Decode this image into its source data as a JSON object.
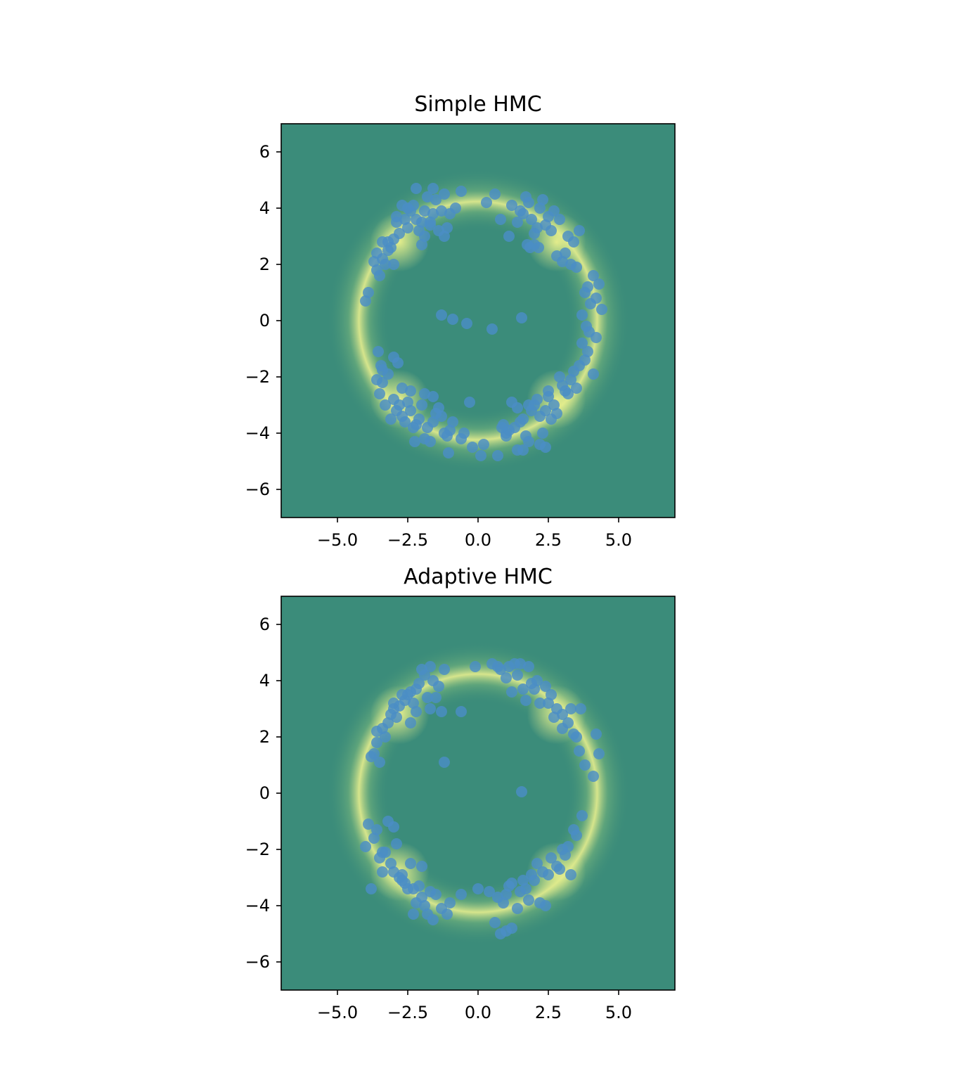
{
  "chart_data": [
    {
      "type": "scatter",
      "title": "Simple HMC",
      "xlabel": "",
      "ylabel": "",
      "xlim": [
        -7,
        7
      ],
      "ylim": [
        -7,
        7
      ],
      "xticks": [
        -5.0,
        -2.5,
        0.0,
        2.5,
        5.0
      ],
      "xtick_labels": [
        "−5.0",
        "−2.5",
        "0.0",
        "2.5",
        "5.0"
      ],
      "yticks": [
        -6,
        -4,
        -2,
        0,
        2,
        4,
        6
      ],
      "ytick_labels": [
        "−6",
        "−4",
        "−2",
        "0",
        "2",
        "4",
        "6"
      ],
      "grid": false,
      "background": "density heatmap of a four-mode ring (radius about 4.25)",
      "colors": {
        "background": "#3b8c7a",
        "glow": "#f2f28c",
        "points": "#4b8ec6"
      },
      "series": [
        {
          "x": [
            -2.1,
            -1.8,
            -1.5,
            -2.4,
            -1.2,
            -2.0,
            -1.6,
            -2.7,
            -1.0,
            -2.2,
            -1.9,
            -1.4,
            -2.5,
            -0.9,
            -1.7,
            -2.3,
            -1.1,
            -2.8,
            -0.6,
            -1.3,
            -2.6,
            -1.9,
            -0.3,
            -3.0,
            -2.4,
            -1.6,
            -3.3,
            -2.9,
            -3.5,
            -3.1,
            -3.4,
            -2.7,
            -3.6,
            -3.2,
            -3.0,
            -3.45,
            -2.85,
            -3.55,
            -0.5,
            0.2,
            -3.4,
            -2.25,
            -1.05,
            1.6,
            1.9,
            2.2,
            1.4,
            2.5,
            1.8,
            2.1,
            2.7,
            1.2,
            2.4,
            1.7,
            2.0,
            2.9,
            1.5,
            2.3,
            1.1,
            2.6,
            1.85,
            2.15,
            3.2,
            2.8,
            3.4,
            3.0,
            3.6,
            3.1,
            3.5,
            3.9,
            4.1,
            3.8,
            4.3,
            4.0,
            3.7,
            4.2,
            4.4,
            3.85,
            3.95,
            4.2,
            0.8,
            0.3,
            3.3,
            2.0,
            1.75,
            0.6,
            -2.2,
            -1.9,
            -2.5,
            -1.6,
            -2.8,
            -2.0,
            -1.3,
            -2.3,
            -1.7,
            -3.0,
            -2.6,
            -1.5,
            -2.1,
            -1.0,
            -2.4,
            -1.8,
            -2.9,
            -1.2,
            -3.2,
            -2.0,
            -1.4,
            -2.7,
            -0.8,
            -1.6,
            -2.2,
            -3.1,
            -1.9,
            -3.4,
            -3.6,
            -3.3,
            -3.5,
            -3.7,
            -3.9,
            -4.0,
            -3.4,
            -3.2,
            -3.6,
            -1.1,
            -0.6,
            -2.5,
            -1.2,
            -1.7,
            -2.9,
            -3.0,
            1.6,
            1.9,
            1.3,
            2.2,
            1.5,
            2.0,
            1.1,
            2.4,
            1.7,
            2.6,
            1.4,
            2.1,
            0.9,
            2.3,
            1.8,
            2.8,
            1.2,
            2.5,
            1.0,
            2.7,
            3.0,
            3.2,
            2.9,
            3.4,
            3.1,
            3.6,
            3.3,
            3.8,
            3.5,
            2.4,
            1.4,
            0.7,
            0.1,
            -0.2,
            3.9,
            3.7,
            4.1,
            2.5,
            1.8,
            2.2,
            1.0,
            0.85,
            1.6,
            1.55,
            -0.9,
            -0.4,
            -1.3,
            0.5
          ],
          "y": [
            -3.5,
            -3.8,
            -3.3,
            -3.2,
            -4.0,
            -3.0,
            -3.6,
            -3.4,
            -3.9,
            -3.7,
            -4.2,
            -3.1,
            -2.9,
            -3.6,
            -4.3,
            -3.8,
            -4.1,
            -3.0,
            -4.2,
            -3.4,
            -3.6,
            -2.6,
            -2.9,
            -2.8,
            -2.5,
            -2.7,
            -3.0,
            -3.2,
            -2.6,
            -3.5,
            -2.2,
            -2.4,
            -2.1,
            -1.9,
            -1.3,
            -1.6,
            -1.5,
            -1.1,
            -4.0,
            -4.4,
            -1.75,
            -4.3,
            -4.7,
            3.8,
            3.6,
            4.0,
            3.5,
            3.7,
            4.2,
            3.3,
            3.9,
            4.1,
            3.4,
            4.4,
            3.1,
            3.6,
            3.9,
            4.3,
            3.0,
            3.2,
            2.6,
            2.6,
            3.0,
            2.3,
            2.8,
            2.1,
            3.2,
            2.4,
            1.9,
            1.2,
            1.6,
            1.0,
            1.3,
            0.6,
            0.2,
            0.8,
            0.4,
            -0.2,
            -0.4,
            -0.6,
            3.6,
            4.2,
            2.0,
            2.7,
            2.7,
            4.5,
            3.6,
            3.9,
            3.3,
            3.8,
            3.1,
            3.5,
            3.9,
            4.1,
            3.4,
            2.9,
            3.6,
            4.3,
            3.2,
            3.8,
            3.9,
            4.4,
            3.7,
            4.5,
            2.8,
            2.7,
            3.2,
            4.1,
            4.0,
            4.7,
            4.7,
            2.6,
            3.0,
            2.2,
            2.4,
            2.0,
            1.6,
            2.1,
            1.0,
            0.7,
            2.8,
            2.5,
            1.8,
            3.3,
            4.6,
            4.0,
            3.0,
            3.5,
            3.5,
            2.0,
            -3.5,
            -3.2,
            -3.8,
            -3.4,
            -3.6,
            -3.0,
            -3.9,
            -3.2,
            -4.1,
            -3.5,
            -3.1,
            -2.8,
            -3.7,
            -4.0,
            -4.3,
            -3.3,
            -2.9,
            -2.7,
            -4.1,
            -3.0,
            -2.3,
            -2.6,
            -2.0,
            -1.8,
            -2.5,
            -1.6,
            -2.1,
            -1.4,
            -2.4,
            -4.5,
            -4.6,
            -4.8,
            -4.8,
            -4.5,
            -1.1,
            -0.8,
            -1.9,
            -2.5,
            -3.0,
            -4.4,
            -4.0,
            -3.8,
            -4.6,
            0.1,
            0.05,
            -0.1,
            0.2,
            -0.3
          ]
        }
      ]
    },
    {
      "type": "scatter",
      "title": "Adaptive HMC",
      "xlabel": "",
      "ylabel": "",
      "xlim": [
        -7,
        7
      ],
      "ylim": [
        -7,
        7
      ],
      "xticks": [
        -5.0,
        -2.5,
        0.0,
        2.5,
        5.0
      ],
      "xtick_labels": [
        "−5.0",
        "−2.5",
        "0.0",
        "2.5",
        "5.0"
      ],
      "yticks": [
        -6,
        -4,
        -2,
        0,
        2,
        4,
        6
      ],
      "ytick_labels": [
        "−6",
        "−4",
        "−2",
        "0",
        "2",
        "4",
        "6"
      ],
      "grid": false,
      "background": "density heatmap of a four-mode ring (radius about 4.25)",
      "colors": {
        "background": "#3b8c7a",
        "glow": "#f2f28c",
        "points": "#4b8ec6"
      },
      "series": [
        {
          "x": [
            -2.4,
            -2.1,
            -1.8,
            -2.6,
            -1.6,
            -2.2,
            -2.8,
            -1.9,
            -2.5,
            -1.4,
            -2.0,
            -2.3,
            -1.7,
            -3.0,
            -2.7,
            -1.5,
            -2.2,
            -2.9,
            -1.3,
            -3.2,
            -3.0,
            -3.4,
            -3.1,
            -3.6,
            -3.3,
            -3.7,
            -3.5,
            -3.8,
            -3.6,
            -0.6,
            -0.1,
            -1.7,
            -2.4,
            -1.2,
            1.6,
            1.4,
            1.9,
            1.2,
            2.1,
            1.7,
            2.4,
            1.0,
            2.6,
            1.8,
            2.2,
            1.5,
            0.8,
            2.8,
            2.0,
            3.0,
            2.5,
            3.2,
            2.7,
            3.4,
            3.0,
            3.6,
            3.5,
            3.8,
            4.1,
            4.3,
            4.2,
            3.3,
            3.65,
            0.5,
            1.1,
            0.7,
            1.3,
            -2.3,
            -2.0,
            -2.6,
            -1.7,
            -2.8,
            -2.2,
            -1.5,
            -2.5,
            -1.9,
            -3.0,
            -2.7,
            -1.3,
            -2.1,
            -1.0,
            -2.4,
            -1.8,
            -3.1,
            -3.3,
            -3.5,
            -2.9,
            -3.7,
            -3.4,
            -3.9,
            -3.6,
            -3.2,
            -3.8,
            -2.0,
            -1.1,
            -0.6,
            -1.6,
            -2.3,
            -3.4,
            -2.7,
            -4.0,
            -3.0,
            1.5,
            1.2,
            1.8,
            1.0,
            2.0,
            1.4,
            2.3,
            0.9,
            1.7,
            2.5,
            1.1,
            2.1,
            0.7,
            2.8,
            1.9,
            3.0,
            2.6,
            3.2,
            2.4,
            3.3,
            0.4,
            0.6,
            1.2,
            0.8,
            1.0,
            3.5,
            3.7,
            3.4,
            3.1,
            2.2,
            1.6,
            0.0,
            1.55,
            -1.2,
            2.9
          ],
          "y": [
            3.6,
            3.9,
            3.4,
            3.3,
            4.0,
            3.7,
            3.1,
            4.2,
            3.5,
            3.8,
            4.4,
            3.2,
            4.5,
            3.0,
            3.5,
            3.4,
            2.9,
            2.7,
            2.9,
            2.5,
            3.2,
            2.3,
            2.8,
            1.8,
            2.0,
            1.4,
            1.1,
            1.3,
            2.2,
            2.9,
            4.5,
            3.0,
            2.5,
            4.4,
            3.7,
            4.2,
            3.9,
            3.6,
            4.0,
            3.3,
            3.8,
            4.1,
            3.5,
            4.5,
            3.2,
            4.6,
            4.4,
            3.0,
            3.7,
            2.8,
            3.2,
            2.5,
            2.7,
            2.1,
            2.3,
            1.5,
            2.0,
            1.0,
            0.6,
            1.4,
            2.1,
            3.0,
            3.0,
            4.6,
            4.5,
            4.5,
            4.6,
            -3.4,
            -3.7,
            -3.2,
            -3.5,
            -3.0,
            -3.9,
            -3.6,
            -3.4,
            -4.0,
            -2.8,
            -3.1,
            -4.1,
            -3.3,
            -3.9,
            -2.5,
            -4.3,
            -2.5,
            -2.1,
            -2.3,
            -1.8,
            -1.6,
            -2.8,
            -1.1,
            -1.3,
            -1.0,
            -3.4,
            -2.6,
            -4.3,
            -3.6,
            -4.5,
            -4.3,
            -2.1,
            -2.9,
            -1.9,
            -1.2,
            -3.5,
            -3.2,
            -3.8,
            -3.6,
            -3.1,
            -4.1,
            -2.8,
            -3.9,
            -3.4,
            -2.9,
            -3.3,
            -2.5,
            -3.7,
            -2.6,
            -2.9,
            -2.0,
            -2.3,
            -1.9,
            -4.0,
            -2.9,
            -3.5,
            -4.6,
            -4.8,
            -5.0,
            -4.9,
            -1.5,
            -0.8,
            -1.3,
            -2.2,
            -3.9,
            -3.1,
            -3.4,
            0.05,
            1.1,
            -2.7
          ]
        }
      ]
    }
  ]
}
